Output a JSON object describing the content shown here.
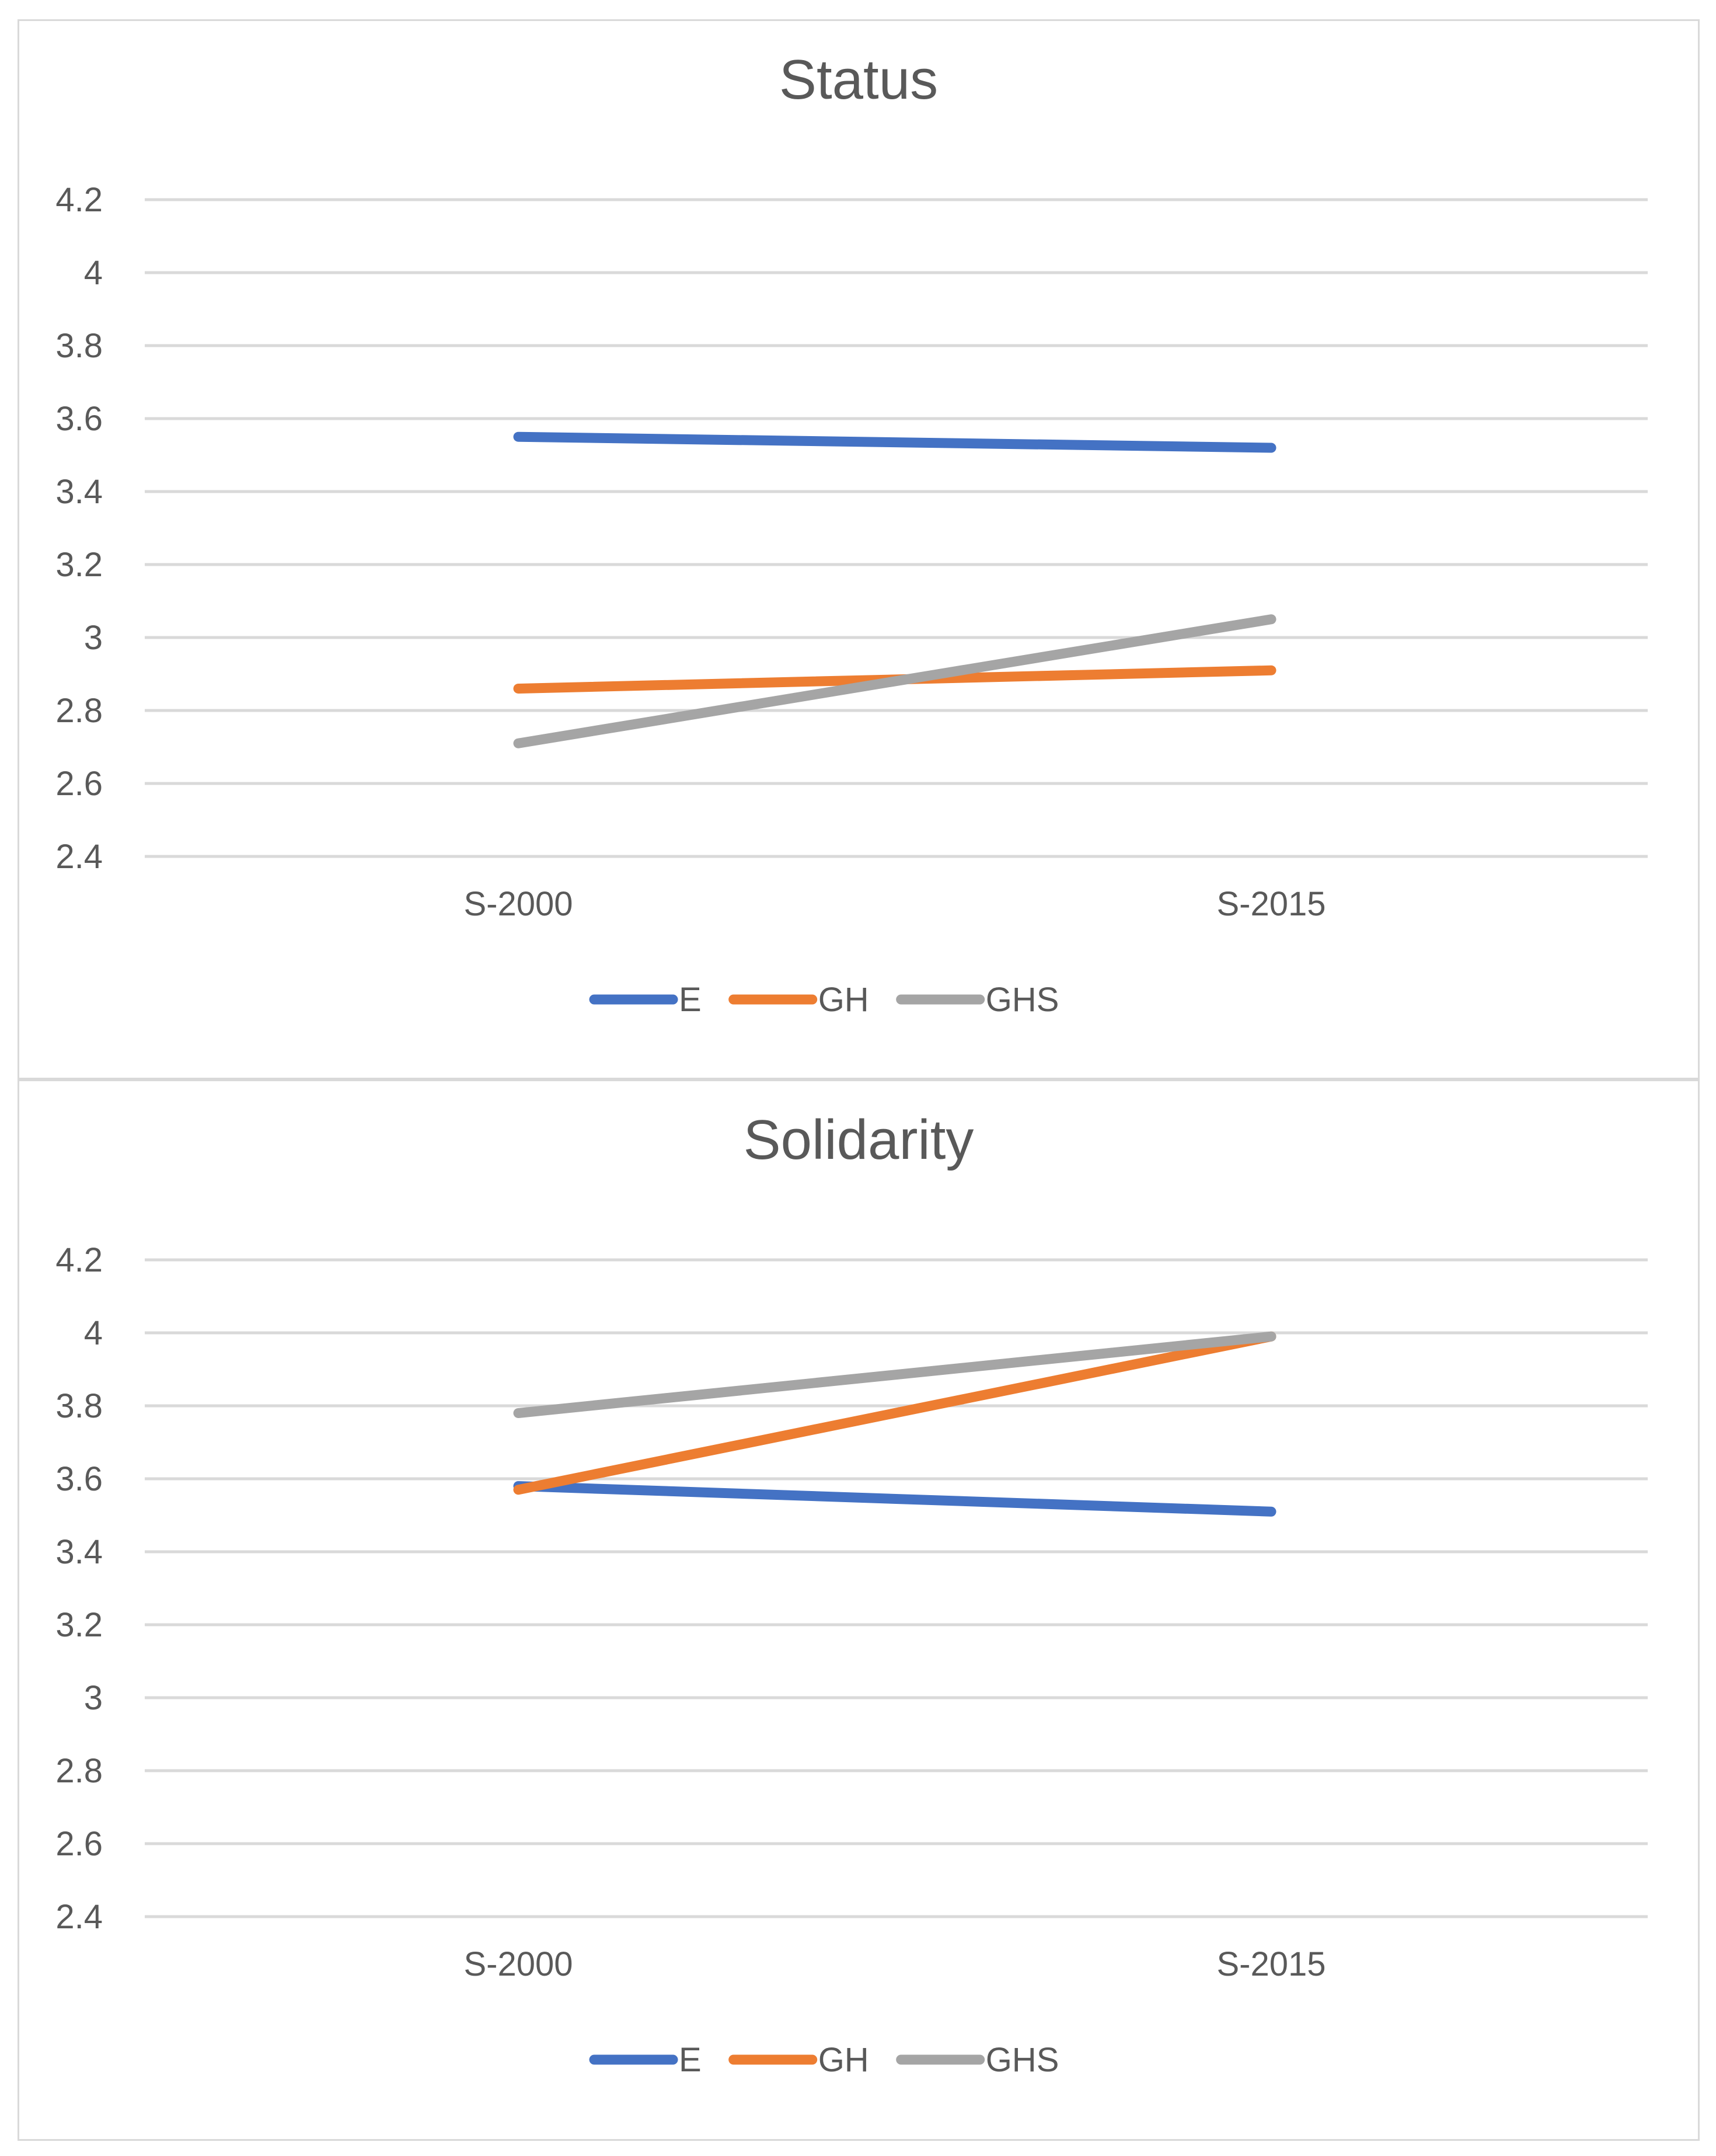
{
  "chart_data": [
    {
      "type": "line",
      "title": "Status",
      "categories": [
        "S-2000",
        "S-2015"
      ],
      "ylim": [
        2.4,
        4.2
      ],
      "yticks": [
        "2.4",
        "2.6",
        "2.8",
        "3",
        "3.2",
        "3.4",
        "3.6",
        "3.8",
        "4",
        "4.2"
      ],
      "xlabel": "",
      "ylabel": "",
      "grid": true,
      "legend_position": "bottom",
      "series": [
        {
          "name": "E",
          "color": "#4472c4",
          "values": [
            3.55,
            3.52
          ]
        },
        {
          "name": "GH",
          "color": "#ed7d31",
          "values": [
            2.86,
            2.91
          ]
        },
        {
          "name": "GHS",
          "color": "#a5a5a5",
          "values": [
            2.71,
            3.05
          ]
        }
      ]
    },
    {
      "type": "line",
      "title": "Solidarity",
      "categories": [
        "S-2000",
        "S-2015"
      ],
      "ylim": [
        2.4,
        4.2
      ],
      "yticks": [
        "2.4",
        "2.6",
        "2.8",
        "3",
        "3.2",
        "3.4",
        "3.6",
        "3.8",
        "4",
        "4.2"
      ],
      "xlabel": "",
      "ylabel": "",
      "grid": true,
      "legend_position": "bottom",
      "series": [
        {
          "name": "E",
          "color": "#4472c4",
          "values": [
            3.58,
            3.51
          ]
        },
        {
          "name": "GH",
          "color": "#ed7d31",
          "values": [
            3.57,
            3.99
          ]
        },
        {
          "name": "GHS",
          "color": "#a5a5a5",
          "values": [
            3.78,
            3.99
          ]
        }
      ]
    }
  ]
}
